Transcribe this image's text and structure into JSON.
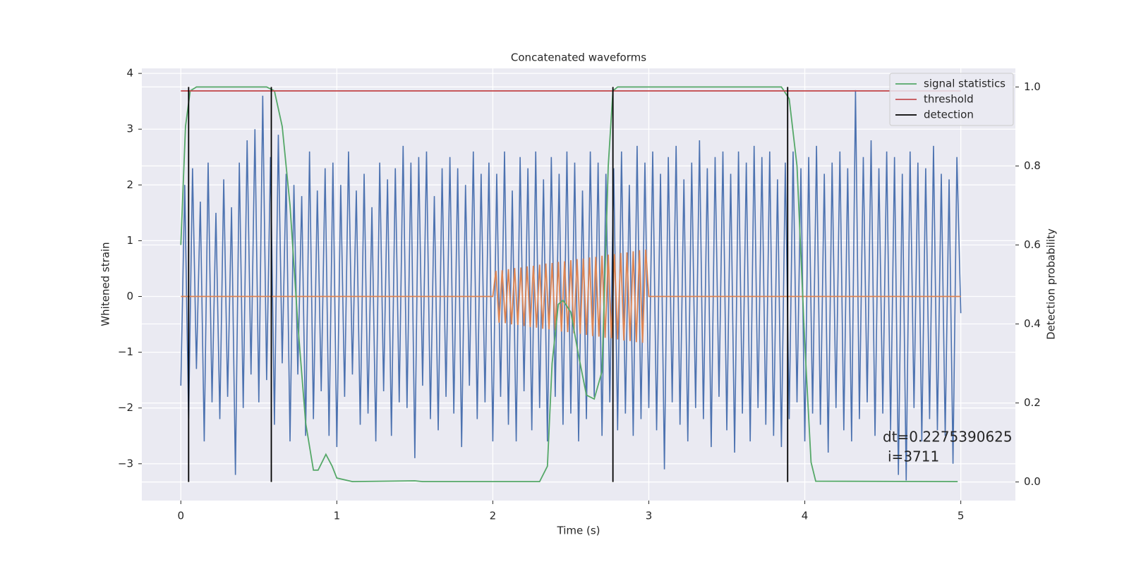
{
  "chart_data": {
    "type": "line",
    "title": "Concatenated waveforms",
    "xlabel": "Time (s)",
    "ylabel": "Whitened strain",
    "y2label": "Detection probability",
    "xlim": [
      -0.25,
      5.35
    ],
    "ylim": [
      -3.66,
      4.09
    ],
    "y2lim": [
      -0.047,
      1.047
    ],
    "xticks": [
      0,
      1,
      2,
      3,
      4,
      5
    ],
    "yticks": [
      {
        "value": -3,
        "label": "−3"
      },
      {
        "value": -2,
        "label": "−2"
      },
      {
        "value": -1,
        "label": "−1"
      },
      0,
      1,
      2,
      3,
      4
    ],
    "y2ticks": [
      {
        "value": 0,
        "label": "0.0"
      },
      0.2,
      0.4,
      0.6,
      0.8,
      {
        "value": 1,
        "label": "1.0"
      }
    ],
    "grid": true,
    "legend": "upper right",
    "annotations": [
      "dt=0.2275390625",
      "i=3711"
    ],
    "series": [
      {
        "color": "#4c72b0",
        "x": [
          0,
          0.025,
          0.05,
          0.075,
          0.1,
          0.125,
          0.15,
          0.175,
          0.2,
          0.225,
          0.25,
          0.275,
          0.3,
          0.325,
          0.35,
          0.375,
          0.4,
          0.425,
          0.45,
          0.475,
          0.5,
          0.525,
          0.55,
          0.575,
          0.6,
          0.625,
          0.65,
          0.675,
          0.7,
          0.725,
          0.75,
          0.775,
          0.8,
          0.825,
          0.85,
          0.875,
          0.9,
          0.925,
          0.95,
          0.975,
          1,
          1.025,
          1.05,
          1.075,
          1.1,
          1.125,
          1.15,
          1.175,
          1.2,
          1.225,
          1.25,
          1.275,
          1.3,
          1.325,
          1.35,
          1.375,
          1.4,
          1.425,
          1.45,
          1.475,
          1.5,
          1.525,
          1.55,
          1.575,
          1.6,
          1.625,
          1.65,
          1.675,
          1.7,
          1.725,
          1.75,
          1.775,
          1.8,
          1.825,
          1.85,
          1.875,
          1.9,
          1.925,
          1.95,
          1.975,
          2,
          2.025,
          2.05,
          2.075,
          2.1,
          2.125,
          2.15,
          2.175,
          2.2,
          2.225,
          2.25,
          2.275,
          2.3,
          2.325,
          2.35,
          2.375,
          2.4,
          2.425,
          2.45,
          2.475,
          2.5,
          2.525,
          2.55,
          2.575,
          2.6,
          2.625,
          2.65,
          2.675,
          2.7,
          2.725,
          2.75,
          2.775,
          2.8,
          2.825,
          2.85,
          2.875,
          2.9,
          2.925,
          2.95,
          2.975,
          3,
          3.025,
          3.05,
          3.075,
          3.1,
          3.125,
          3.15,
          3.175,
          3.2,
          3.225,
          3.25,
          3.275,
          3.3,
          3.325,
          3.35,
          3.375,
          3.4,
          3.425,
          3.45,
          3.475,
          3.5,
          3.525,
          3.55,
          3.575,
          3.6,
          3.625,
          3.65,
          3.675,
          3.7,
          3.725,
          3.75,
          3.775,
          3.8,
          3.825,
          3.85,
          3.875,
          3.9,
          3.925,
          3.95,
          3.975,
          4,
          4.025,
          4.05,
          4.075,
          4.1,
          4.125,
          4.15,
          4.175,
          4.2,
          4.225,
          4.25,
          4.275,
          4.3,
          4.325,
          4.35,
          4.375,
          4.4,
          4.425,
          4.45,
          4.475,
          4.5,
          4.525,
          4.55,
          4.575,
          4.6,
          4.625,
          4.65,
          4.675,
          4.7,
          4.725,
          4.75,
          4.775,
          4.8,
          4.825,
          4.85,
          4.875,
          4.9,
          4.925,
          4.95,
          4.975,
          5
        ],
        "values": [
          -1.6,
          2.0,
          -2.2,
          2.3,
          -1.3,
          1.7,
          -2.6,
          2.4,
          -1.9,
          1.5,
          -2.2,
          2.1,
          -1.8,
          1.6,
          -3.2,
          2.4,
          -2.0,
          2.8,
          -1.4,
          3.0,
          -1.9,
          3.6,
          -1.5,
          2.5,
          -2.3,
          2.9,
          -1.2,
          2.2,
          -2.6,
          2.0,
          -1.4,
          1.8,
          -2.5,
          2.6,
          -2.2,
          1.9,
          -1.7,
          2.3,
          -2.5,
          2.4,
          -2.7,
          2.0,
          -1.8,
          2.6,
          -1.4,
          1.9,
          -2.3,
          2.2,
          -2.1,
          1.6,
          -2.6,
          2.4,
          -1.7,
          2.1,
          -2.5,
          2.3,
          -1.9,
          2.7,
          -2.0,
          2.4,
          -2.9,
          2.5,
          -1.6,
          2.6,
          -2.2,
          1.8,
          -2.4,
          2.3,
          -1.8,
          2.5,
          -2.1,
          2.3,
          -2.7,
          2.0,
          -1.6,
          2.6,
          -2.2,
          2.2,
          -1.9,
          2.4,
          -2.6,
          2.2,
          -1.8,
          2.6,
          -2.3,
          1.9,
          -2.6,
          2.5,
          -1.7,
          2.3,
          -2.4,
          2.6,
          -2.0,
          2.1,
          -2.6,
          2.5,
          -1.8,
          2.2,
          -2.3,
          2.6,
          -2.1,
          2.4,
          -2.6,
          1.9,
          -2.2,
          2.6,
          -1.8,
          2.4,
          -2.5,
          2.2,
          -1.9,
          2.3,
          -2.4,
          2.6,
          -2.1,
          2.0,
          -2.5,
          2.7,
          -2.2,
          2.4,
          -2.0,
          2.6,
          -2.4,
          2.2,
          -3.1,
          2.5,
          -1.9,
          2.7,
          -2.3,
          2.1,
          -2.6,
          2.4,
          -2.0,
          2.8,
          -2.2,
          2.3,
          -2.7,
          2.5,
          -1.8,
          2.6,
          -2.4,
          2.2,
          -2.8,
          2.6,
          -2.1,
          2.4,
          -2.6,
          2.7,
          -2.0,
          2.5,
          -2.3,
          2.6,
          -2.5,
          2.1,
          -2.7,
          2.4,
          -2.2,
          2.6,
          -1.9,
          2.3,
          -2.6,
          2.5,
          -2.1,
          2.7,
          -2.3,
          2.2,
          -2.8,
          2.4,
          -2.0,
          2.6,
          -2.4,
          2.3,
          -2.6,
          3.7,
          -2.2,
          2.5,
          -1.9,
          2.8,
          -2.5,
          2.3,
          -2.1,
          2.6,
          -2.4,
          2.5,
          -3.2,
          2.2,
          -3.3,
          2.6,
          -2.0,
          2.4,
          -2.6,
          2.3,
          -2.2,
          2.7,
          -2.4,
          2.2,
          -2.5,
          2.1,
          -3.0,
          2.5,
          -0.3
        ]
      },
      {
        "color": "#dd8452",
        "x": [
          0,
          2,
          2.02,
          2.04,
          2.06,
          2.08,
          2.1,
          2.12,
          2.14,
          2.16,
          2.18,
          2.2,
          2.22,
          2.24,
          2.26,
          2.28,
          2.3,
          2.32,
          2.34,
          2.36,
          2.38,
          2.4,
          2.42,
          2.44,
          2.46,
          2.48,
          2.5,
          2.52,
          2.54,
          2.56,
          2.58,
          2.6,
          2.62,
          2.64,
          2.66,
          2.68,
          2.7,
          2.72,
          2.74,
          2.76,
          2.78,
          2.8,
          2.82,
          2.84,
          2.86,
          2.88,
          2.9,
          2.92,
          2.94,
          2.96,
          2.98,
          3,
          5
        ],
        "values": [
          0,
          0,
          0.46,
          -0.47,
          0.47,
          -0.48,
          0.49,
          -0.5,
          0.51,
          -0.51,
          0.52,
          -0.53,
          0.54,
          -0.55,
          0.55,
          -0.56,
          0.57,
          -0.58,
          0.59,
          -0.59,
          0.6,
          -0.61,
          0.62,
          -0.63,
          0.63,
          -0.64,
          0.65,
          -0.66,
          0.67,
          -0.67,
          0.68,
          -0.69,
          0.7,
          -0.71,
          0.71,
          -0.72,
          0.73,
          -0.74,
          0.75,
          -0.75,
          0.76,
          -0.77,
          0.78,
          -0.79,
          0.79,
          -0.8,
          0.81,
          -0.82,
          0.83,
          -0.83,
          0.84,
          0,
          0
        ]
      },
      {
        "name": "signal statistics",
        "color": "#55a868",
        "axis": "y2",
        "x": [
          0,
          0.03,
          0.06,
          0.1,
          0.55,
          0.6,
          0.65,
          0.7,
          0.75,
          0.8,
          0.85,
          0.88,
          0.93,
          0.97,
          1.0,
          1.1,
          1.5,
          1.55,
          2.3,
          2.35,
          2.38,
          2.42,
          2.45,
          2.5,
          2.55,
          2.6,
          2.65,
          2.7,
          2.74,
          2.77,
          2.8,
          3.85,
          3.9,
          3.95,
          4.0,
          4.04,
          4.07,
          4.98
        ],
        "values": [
          0.6,
          0.9,
          0.99,
          1.0,
          1.0,
          0.99,
          0.9,
          0.7,
          0.4,
          0.15,
          0.03,
          0.03,
          0.07,
          0.04,
          0.01,
          0.001,
          0.003,
          0.001,
          0.001,
          0.04,
          0.3,
          0.45,
          0.46,
          0.43,
          0.32,
          0.22,
          0.21,
          0.28,
          0.8,
          0.99,
          1.0,
          1.0,
          0.97,
          0.8,
          0.35,
          0.05,
          0.002,
          0.001
        ]
      },
      {
        "name": "threshold",
        "color": "#c44e52",
        "axis": "y2",
        "x": [
          0,
          5
        ],
        "values": [
          0.99,
          0.99
        ]
      }
    ],
    "detections": {
      "name": "detection",
      "color": "#000000",
      "x": [
        0.05,
        0.58,
        2.77,
        3.89
      ]
    }
  }
}
